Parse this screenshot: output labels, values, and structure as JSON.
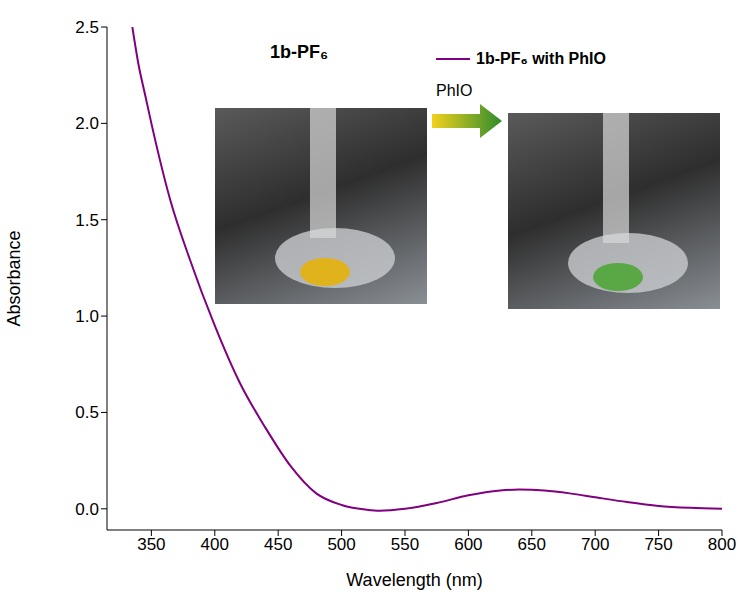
{
  "chart_data": {
    "type": "line",
    "title": "1b-PF₆",
    "x_label": "Wavelength (nm)",
    "y_label": "Absorbance",
    "annotations": [
      "PhIO"
    ],
    "x": [
      335,
      340,
      345,
      350,
      365,
      380,
      400,
      420,
      440,
      460,
      480,
      500,
      520,
      530,
      550,
      575,
      600,
      625,
      640,
      660,
      680,
      700,
      725,
      750,
      775,
      800
    ],
    "series": [
      {
        "name": "1b-PF₆ with PhIO",
        "color": "#800080",
        "line_style": "solid",
        "values": [
          2.5,
          2.3,
          2.15,
          2.0,
          1.6,
          1.3,
          0.95,
          0.65,
          0.42,
          0.22,
          0.08,
          0.02,
          -0.005,
          -0.01,
          0.0,
          0.03,
          0.07,
          0.095,
          0.1,
          0.095,
          0.08,
          0.06,
          0.035,
          0.015,
          0.005,
          0.0
        ]
      }
    ],
    "xlim": [
      315,
      800
    ],
    "xticks": [
      350,
      400,
      450,
      500,
      550,
      600,
      650,
      700,
      750,
      800
    ],
    "ylim": [
      -0.11,
      2.5
    ],
    "yticks": [
      {
        "value": 0,
        "label": "0.0"
      },
      {
        "value": 0.5,
        "label": "0.5"
      },
      {
        "value": 1,
        "label": "1.0"
      },
      {
        "value": 1.5,
        "label": "1.5"
      },
      {
        "value": 2,
        "label": "2.0"
      },
      {
        "value": 2.5,
        "label": "2.5"
      }
    ],
    "grid": false,
    "legend": "top-right"
  }
}
